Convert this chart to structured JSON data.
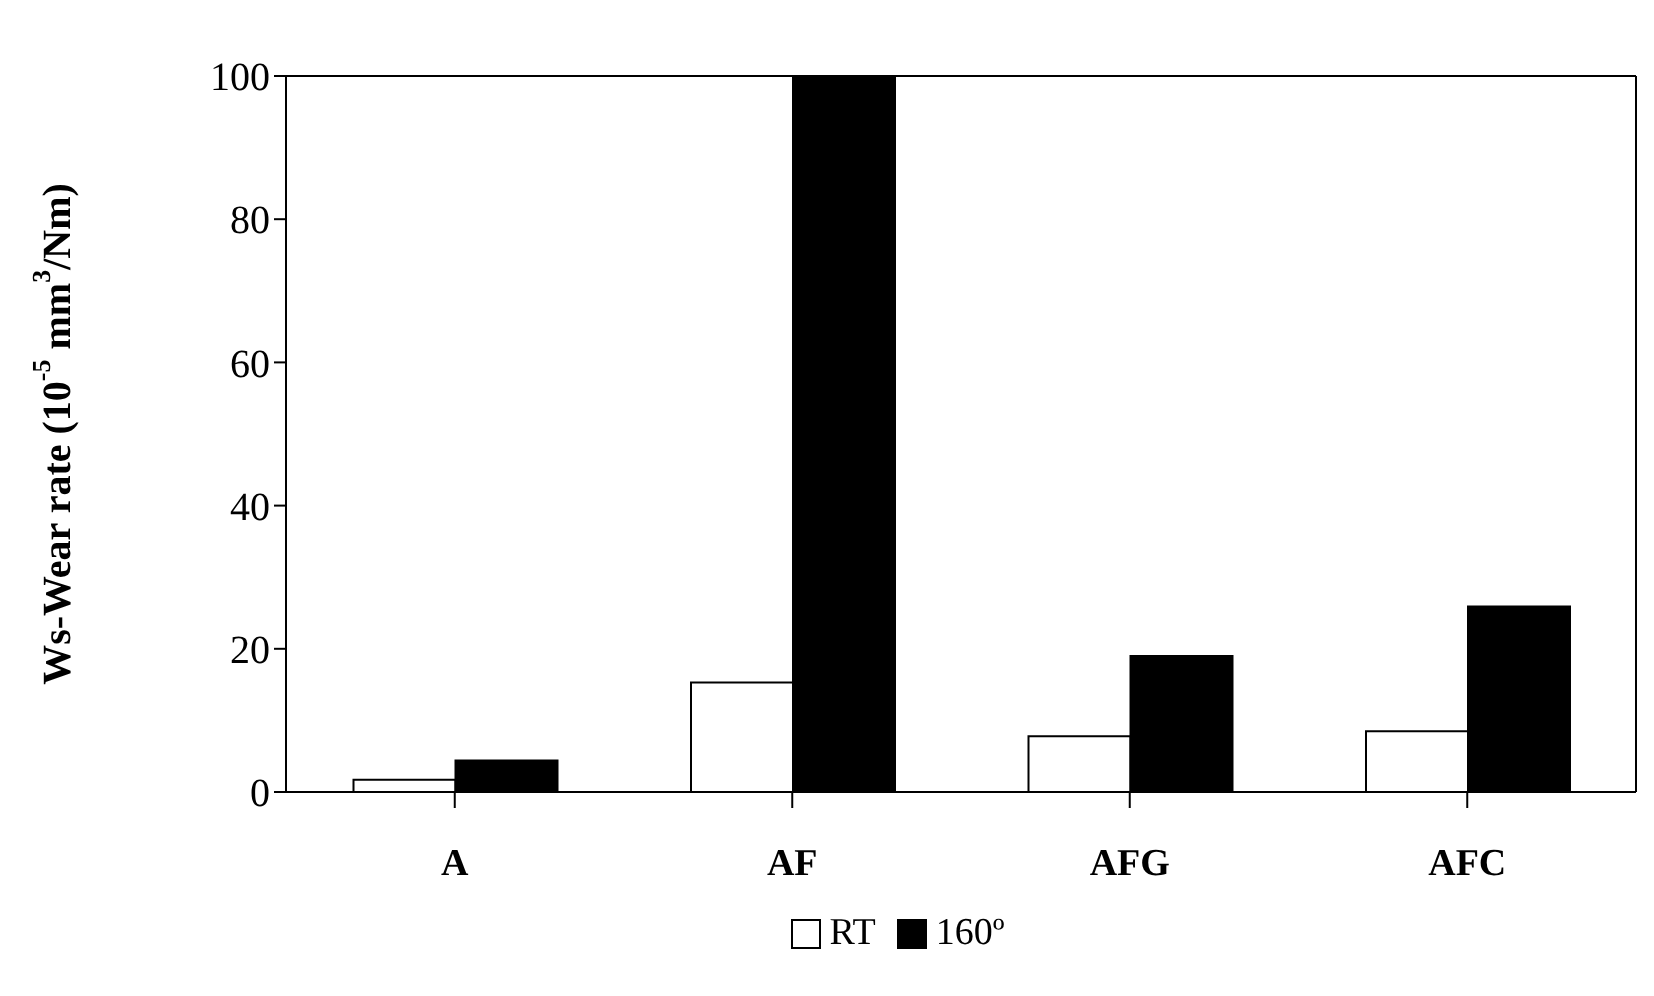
{
  "chart_data": {
    "type": "bar",
    "ylabel": "Ws-Wear rate (10$^{-5}$ mm$^{3}$/Nm)",
    "categories": [
      "A",
      "AF",
      "AFG",
      "AFC"
    ],
    "series": [
      {
        "name": "RT",
        "color": "#ffffff",
        "values": [
          1.7,
          15.3,
          7.8,
          8.5
        ]
      },
      {
        "name": "160º",
        "color": "#000000",
        "values": [
          4.4,
          100,
          19,
          25.9
        ]
      }
    ],
    "ylim": [
      0,
      100
    ],
    "yticks": [
      0,
      20,
      40,
      60,
      80,
      100
    ],
    "grid": false,
    "legend": "bottom"
  }
}
